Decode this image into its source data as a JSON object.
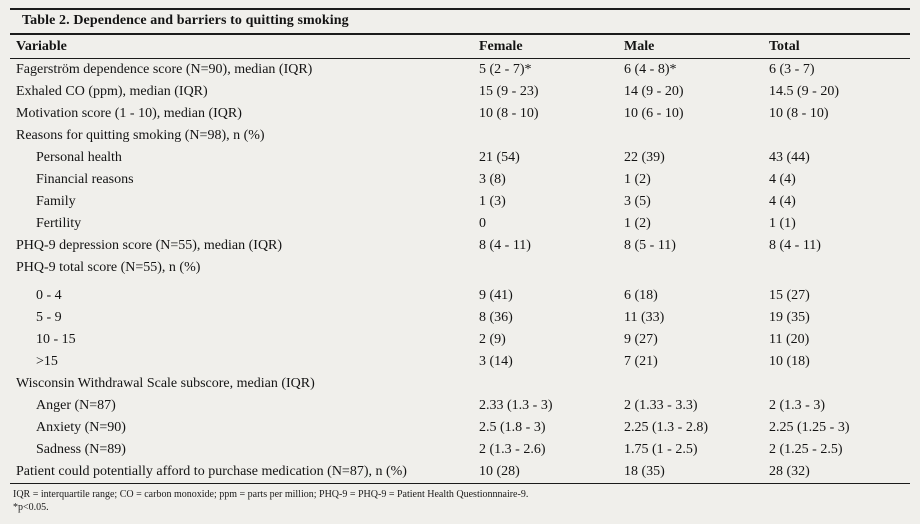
{
  "table": {
    "title": "Table 2. Dependence and barriers to quitting smoking",
    "columns": [
      "Variable",
      "Female",
      "Male",
      "Total"
    ],
    "rows": [
      {
        "label": "Fagerström dependence score (N=90), median (IQR)",
        "indent": false,
        "female": "5 (2 - 7)*",
        "male": "6 (4 - 8)*",
        "total": "6 (3 - 7)"
      },
      {
        "label": "Exhaled CO (ppm), median (IQR)",
        "indent": false,
        "female": "15 (9 - 23)",
        "male": "14 (9 - 20)",
        "total": "14.5 (9 - 20)"
      },
      {
        "label": "Motivation score (1 - 10), median (IQR)",
        "indent": false,
        "female": "10 (8 - 10)",
        "male": "10 (6 - 10)",
        "total": "10 (8 - 10)"
      },
      {
        "label": "Reasons for quitting smoking (N=98), n (%)",
        "indent": false,
        "female": "",
        "male": "",
        "total": ""
      },
      {
        "label": "Personal health",
        "indent": true,
        "female": "21 (54)",
        "male": "22 (39)",
        "total": "43 (44)"
      },
      {
        "label": "Financial reasons",
        "indent": true,
        "female": "3 (8)",
        "male": "1 (2)",
        "total": "4 (4)"
      },
      {
        "label": "Family",
        "indent": true,
        "female": "1 (3)",
        "male": "3 (5)",
        "total": "4 (4)"
      },
      {
        "label": "Fertility",
        "indent": true,
        "female": "0",
        "male": "1 (2)",
        "total": "1 (1)"
      },
      {
        "label": "PHQ-9 depression score (N=55), median (IQR)",
        "indent": false,
        "female": "8 (4 - 11)",
        "male": "8 (5 - 11)",
        "total": "8 (4 - 11)"
      },
      {
        "label": "PHQ-9 total score (N=55), n (%)",
        "indent": false,
        "female": "",
        "male": "",
        "total": ""
      },
      {
        "label": "0 - 4",
        "indent": true,
        "female": "9 (41)",
        "male": "6 (18)",
        "total": "15 (27)"
      },
      {
        "label": "5 - 9",
        "indent": true,
        "female": "8 (36)",
        "male": "11 (33)",
        "total": "19 (35)"
      },
      {
        "label": "10 - 15",
        "indent": true,
        "female": "2 (9)",
        "male": "9 (27)",
        "total": "11 (20)"
      },
      {
        "label": ">15",
        "indent": true,
        "female": "3 (14)",
        "male": "7 (21)",
        "total": "10 (18)"
      },
      {
        "label": "Wisconsin Withdrawal Scale subscore, median (IQR)",
        "indent": false,
        "female": "",
        "male": "",
        "total": ""
      },
      {
        "label": "Anger (N=87)",
        "indent": true,
        "female": "2.33 (1.3 - 3)",
        "male": "2 (1.33 - 3.3)",
        "total": "2 (1.3 - 3)"
      },
      {
        "label": "Anxiety (N=90)",
        "indent": true,
        "female": "2.5 (1.8 - 3)",
        "male": "2.25 (1.3 - 2.8)",
        "total": "2.25 (1.25 - 3)"
      },
      {
        "label": "Sadness (N=89)",
        "indent": true,
        "female": "2 (1.3 - 2.6)",
        "male": "1.75 (1 - 2.5)",
        "total": "2 (1.25 - 2.5)"
      },
      {
        "label": "Patient could potentially afford to purchase medication (N=87), n (%)",
        "indent": false,
        "female": "10 (28)",
        "male": "18 (35)",
        "total": "28 (32)"
      }
    ],
    "footnotes": [
      "IQR = interquartile range; CO = carbon monoxide; ppm = parts per million; PHQ-9 = PHQ-9 = Patient Health Questionnnaire-9.",
      "*p<0.05."
    ]
  }
}
